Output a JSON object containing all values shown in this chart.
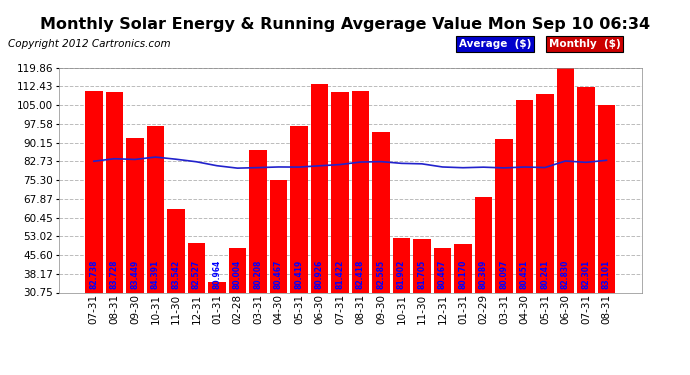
{
  "title": "Monthly Solar Energy & Running Avgerage Value Mon Sep 10 06:34",
  "copyright": "Copyright 2012 Cartronics.com",
  "categories": [
    "07-31",
    "08-31",
    "09-30",
    "10-31",
    "11-30",
    "12-31",
    "01-31",
    "02-28",
    "03-31",
    "04-30",
    "05-31",
    "06-30",
    "07-31",
    "08-31",
    "09-30",
    "10-31",
    "11-30",
    "12-31",
    "01-31",
    "02-29",
    "03-31",
    "04-30",
    "05-31",
    "06-30",
    "07-31",
    "08-31"
  ],
  "bar_values": [
    110.5,
    110.0,
    92.0,
    96.5,
    64.0,
    50.5,
    35.0,
    48.5,
    87.0,
    75.5,
    96.5,
    113.5,
    110.0,
    110.5,
    94.5,
    52.5,
    52.0,
    48.5,
    50.0,
    68.5,
    91.5,
    107.0,
    109.5,
    122.0,
    112.0,
    105.0
  ],
  "avg_values": [
    82.738,
    83.728,
    83.449,
    84.391,
    83.542,
    82.527,
    80.964,
    80.004,
    80.208,
    80.467,
    80.419,
    80.926,
    81.422,
    82.418,
    82.585,
    81.902,
    81.705,
    80.467,
    80.17,
    80.389,
    80.097,
    80.451,
    80.241,
    82.83,
    82.301,
    83.101
  ],
  "ytick_labels": [
    "30.75",
    "38.17",
    "45.60",
    "53.02",
    "60.45",
    "67.87",
    "75.30",
    "82.73",
    "90.15",
    "97.58",
    "105.00",
    "112.43",
    "119.86"
  ],
  "ytick_values": [
    30.75,
    38.17,
    45.6,
    53.02,
    60.45,
    67.87,
    75.3,
    82.73,
    90.15,
    97.58,
    105.0,
    112.43,
    119.86
  ],
  "ymin": 30.75,
  "ymax": 119.86,
  "bar_color": "#ff0000",
  "avg_line_color": "#2222cc",
  "bar_label_color": "#0000ff",
  "background_color": "#ffffff",
  "plot_bg_color": "#ffffff",
  "grid_color": "#bbbbbb",
  "legend_avg_bg": "#0000cc",
  "legend_monthly_bg": "#cc0000",
  "title_fontsize": 11.5,
  "copyright_fontsize": 7.5,
  "bar_label_fontsize": 5.5,
  "tick_fontsize": 7.5,
  "xlabel_rotation": 90
}
